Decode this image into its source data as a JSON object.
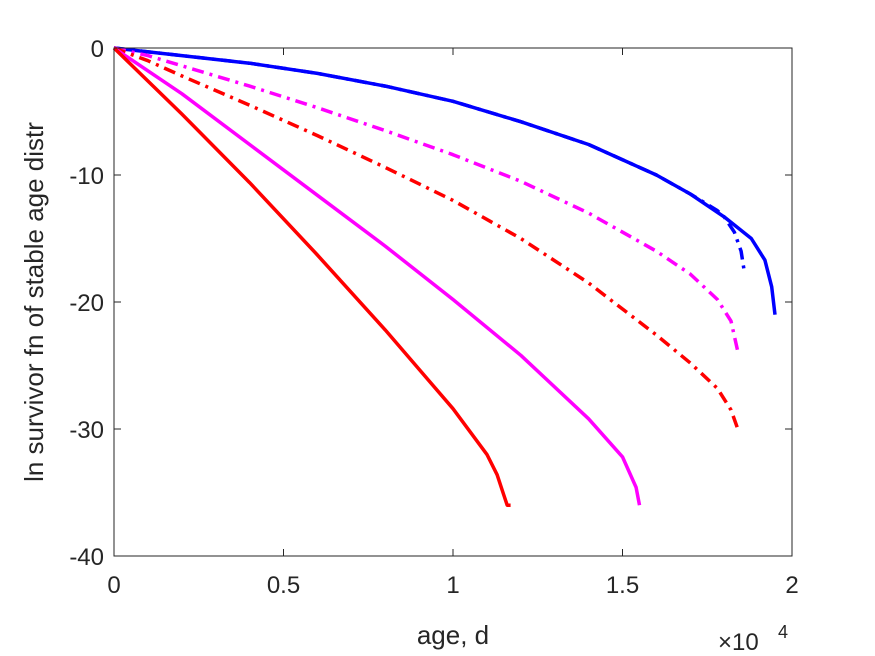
{
  "chart_data": {
    "type": "line",
    "xlabel": "age, d",
    "ylabel": "ln survivor fn of stable age distr",
    "x_exponent_label": {
      "base": "×10",
      "exp": "4"
    },
    "xlim": [
      0,
      20000
    ],
    "ylim": [
      -40,
      0
    ],
    "xticks": [
      0,
      5000,
      10000,
      15000,
      20000
    ],
    "xtick_labels": [
      "0",
      "0.5",
      "1",
      "1.5",
      "2"
    ],
    "yticks": [
      -40,
      -30,
      -20,
      -10,
      0
    ],
    "ytick_labels": [
      "-40",
      "-30",
      "-20",
      "-10",
      "0"
    ],
    "grid": false,
    "series": [
      {
        "color": "#0000ff",
        "style": "solid",
        "points": [
          [
            0,
            0
          ],
          [
            2000,
            -0.6
          ],
          [
            4000,
            -1.2
          ],
          [
            6000,
            -2.0
          ],
          [
            8000,
            -3.0
          ],
          [
            10000,
            -4.2
          ],
          [
            12000,
            -5.8
          ],
          [
            14000,
            -7.6
          ],
          [
            16000,
            -10.0
          ],
          [
            17000,
            -11.5
          ],
          [
            18000,
            -13.3
          ],
          [
            18800,
            -15.0
          ],
          [
            19200,
            -16.7
          ],
          [
            19400,
            -18.8
          ],
          [
            19500,
            -21.0
          ]
        ]
      },
      {
        "color": "#0000ff",
        "style": "dashdot",
        "points": [
          [
            0,
            0
          ],
          [
            2000,
            -0.6
          ],
          [
            4000,
            -1.2
          ],
          [
            6000,
            -2.0
          ],
          [
            8000,
            -3.0
          ],
          [
            10000,
            -4.2
          ],
          [
            12000,
            -5.8
          ],
          [
            14000,
            -7.6
          ],
          [
            16000,
            -10.0
          ],
          [
            17000,
            -11.5
          ],
          [
            17800,
            -12.8
          ],
          [
            18000,
            -13.3
          ],
          [
            18300,
            -14.5
          ],
          [
            18500,
            -16.0
          ],
          [
            18600,
            -17.7
          ]
        ]
      },
      {
        "color": "#ff00ff",
        "style": "dashdot",
        "points": [
          [
            0,
            0
          ],
          [
            1000,
            -0.6
          ],
          [
            2000,
            -1.4
          ],
          [
            4000,
            -3.0
          ],
          [
            6000,
            -4.7
          ],
          [
            8000,
            -6.5
          ],
          [
            10000,
            -8.4
          ],
          [
            12000,
            -10.5
          ],
          [
            14000,
            -13.0
          ],
          [
            16000,
            -16.0
          ],
          [
            17000,
            -17.8
          ],
          [
            17800,
            -19.8
          ],
          [
            18200,
            -21.5
          ],
          [
            18400,
            -23.9
          ]
        ]
      },
      {
        "color": "#ff0000",
        "style": "dashdot",
        "points": [
          [
            0,
            0
          ],
          [
            1000,
            -1.0
          ],
          [
            2000,
            -2.2
          ],
          [
            4000,
            -4.5
          ],
          [
            6000,
            -6.9
          ],
          [
            8000,
            -9.4
          ],
          [
            10000,
            -12.0
          ],
          [
            12000,
            -15.0
          ],
          [
            14000,
            -18.5
          ],
          [
            16000,
            -22.6
          ],
          [
            17000,
            -24.8
          ],
          [
            17800,
            -26.8
          ],
          [
            18200,
            -28.5
          ],
          [
            18400,
            -30.0
          ]
        ]
      },
      {
        "color": "#ff00ff",
        "style": "solid",
        "points": [
          [
            0,
            0
          ],
          [
            2000,
            -3.6
          ],
          [
            4000,
            -7.6
          ],
          [
            6000,
            -11.6
          ],
          [
            8000,
            -15.6
          ],
          [
            10000,
            -19.8
          ],
          [
            12000,
            -24.2
          ],
          [
            14000,
            -29.2
          ],
          [
            15000,
            -32.2
          ],
          [
            15400,
            -34.6
          ],
          [
            15500,
            -36.0
          ]
        ]
      },
      {
        "color": "#ff0000",
        "style": "solid",
        "points": [
          [
            0,
            0
          ],
          [
            2000,
            -5.2
          ],
          [
            4000,
            -10.6
          ],
          [
            6000,
            -16.3
          ],
          [
            8000,
            -22.2
          ],
          [
            10000,
            -28.4
          ],
          [
            11000,
            -32.0
          ],
          [
            11300,
            -33.6
          ],
          [
            11500,
            -35.2
          ],
          [
            11600,
            -36.0
          ],
          [
            11700,
            -36.0
          ]
        ]
      }
    ]
  }
}
